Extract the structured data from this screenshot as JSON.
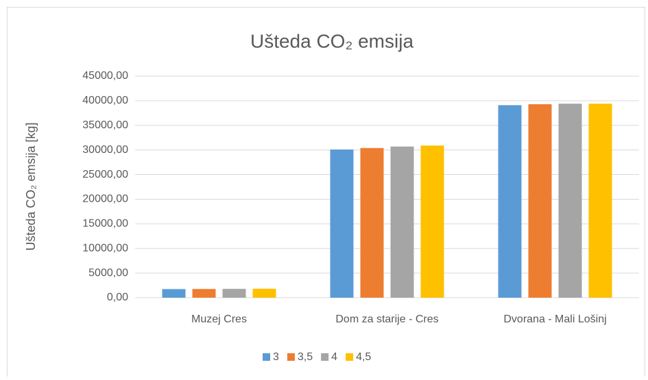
{
  "chart_data": {
    "type": "bar",
    "title": "Ušteda CO₂ emsija",
    "y_label": "Ušteda CO₂ emsija [kg]",
    "categories": [
      "Muzej Cres",
      "Dom za starije - Cres",
      "Dvorana - Mali Lošinj"
    ],
    "series": [
      {
        "name": "3",
        "color": "#5b9bd5",
        "values": [
          1750,
          30100,
          39100
        ]
      },
      {
        "name": "3,5",
        "color": "#ed7d31",
        "values": [
          1770,
          30400,
          39300
        ]
      },
      {
        "name": "4",
        "color": "#a5a5a5",
        "values": [
          1790,
          30700,
          39400
        ]
      },
      {
        "name": "4,5",
        "color": "#ffc000",
        "values": [
          1820,
          30900,
          39400
        ]
      }
    ],
    "ylim": [
      0,
      45000
    ],
    "yticks": [
      {
        "value": 0,
        "label": "0,00"
      },
      {
        "value": 5000,
        "label": "5000,00"
      },
      {
        "value": 10000,
        "label": "10000,00"
      },
      {
        "value": 15000,
        "label": "15000,00"
      },
      {
        "value": 20000,
        "label": "20000,00"
      },
      {
        "value": 25000,
        "label": "25000,00"
      },
      {
        "value": 30000,
        "label": "30000,00"
      },
      {
        "value": 35000,
        "label": "35000,00"
      },
      {
        "value": 40000,
        "label": "40000,00"
      },
      {
        "value": 45000,
        "label": "45000,00"
      }
    ],
    "grid": true,
    "legend": "bottom"
  }
}
